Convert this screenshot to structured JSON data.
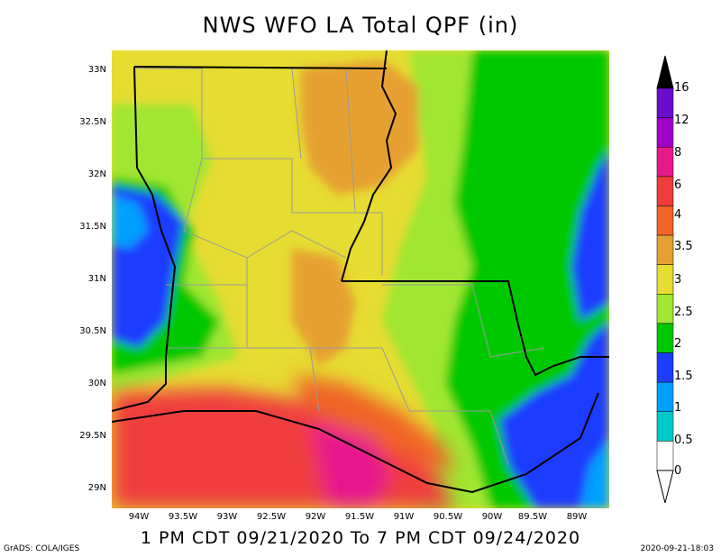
{
  "title": "NWS WFO LA Total QPF (in)",
  "subtitle": "1 PM CDT 09/21/2020 To 7 PM CDT 09/24/2020",
  "credit": "GrADS: COLA/IGES",
  "timestamp": "2020-09-21-18:03",
  "y_ticks": [
    "33N",
    "32.5N",
    "32N",
    "31.5N",
    "31N",
    "30.5N",
    "30N",
    "29.5N",
    "29N"
  ],
  "x_ticks": [
    "94W",
    "93.5W",
    "93W",
    "92.5W",
    "92W",
    "91.5W",
    "91W",
    "90.5W",
    "90W",
    "89.5W",
    "89W"
  ],
  "legend": {
    "labels": [
      "16",
      "12",
      "8",
      "6",
      "4",
      "3.5",
      "3",
      "2.5",
      "2",
      "1.5",
      "1",
      "0.5",
      "0"
    ],
    "colors": [
      "#6a0dcc",
      "#a000c8",
      "#e6198c",
      "#f03c3c",
      "#f06428",
      "#e6a032",
      "#e6dc32",
      "#a0e632",
      "#00c800",
      "#1e3cff",
      "#00a0ff",
      "#00c8c8",
      "#ffffff"
    ]
  },
  "colors": {
    "green": "#00c800",
    "light_green": "#a0e632",
    "yellow": "#e6dc32",
    "orange": "#e6a032",
    "dark_orange": "#f06428",
    "red": "#f03c3c",
    "magenta": "#e6198c",
    "blue": "#1e3cff",
    "light_blue": "#00a0ff"
  }
}
